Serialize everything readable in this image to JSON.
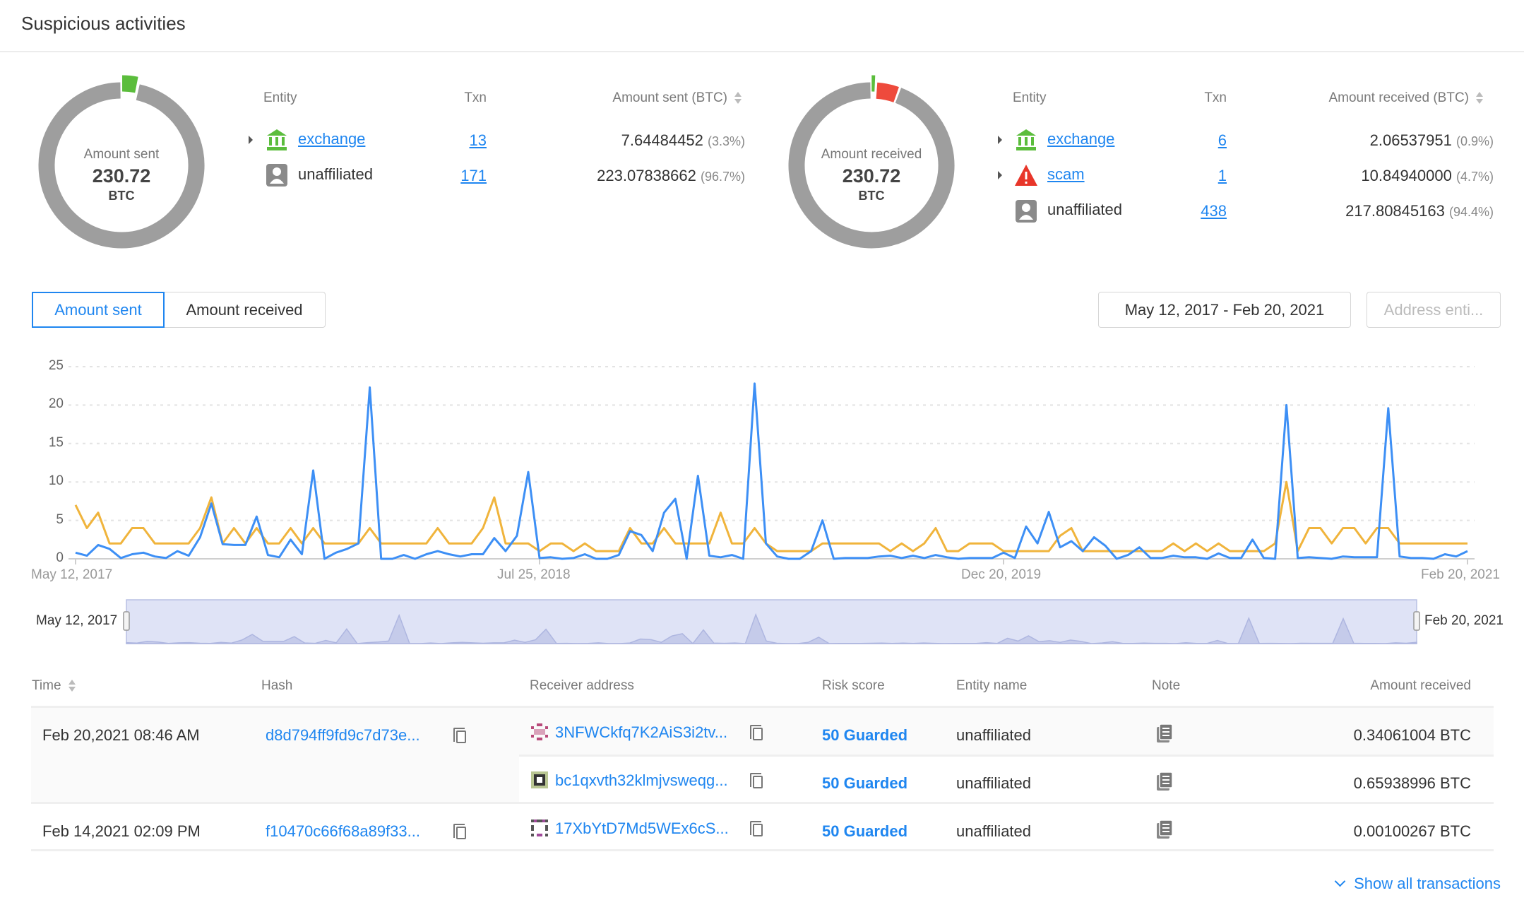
{
  "page": {
    "title": "Suspicious activities"
  },
  "colors": {
    "accent": "#1f86f0",
    "exchange": "#5bbd3c",
    "scam": "#ee4a3c",
    "unaffiliated": "#9e9e9e",
    "sent_line": "#3d8ff5",
    "received_line": "#f0b43c"
  },
  "sent_summary": {
    "donut": {
      "label": "Amount sent",
      "total": "230.72",
      "unit": "BTC",
      "segments_pct": [
        3.3,
        96.7
      ],
      "segment_colors": [
        "#5bbd3c",
        "#9e9e9e"
      ]
    },
    "headers": {
      "entity": "Entity",
      "txn": "Txn",
      "amount": "Amount sent (BTC)"
    },
    "rows": [
      {
        "icon": "bank-icon",
        "entity": "exchange",
        "txn": "13",
        "amount": "7.64484452",
        "pct": "(3.3%)",
        "expandable": true,
        "link": true
      },
      {
        "icon": "person-icon",
        "entity": "unaffiliated",
        "txn": "171",
        "amount": "223.07838662",
        "pct": "(96.7%)",
        "expandable": false,
        "link": false
      }
    ]
  },
  "received_summary": {
    "donut": {
      "label": "Amount received",
      "total": "230.72",
      "unit": "BTC",
      "segments_pct": [
        0.9,
        4.7,
        94.4
      ],
      "segment_colors": [
        "#5bbd3c",
        "#ee4a3c",
        "#9e9e9e"
      ]
    },
    "headers": {
      "entity": "Entity",
      "txn": "Txn",
      "amount": "Amount received (BTC)"
    },
    "rows": [
      {
        "icon": "bank-icon",
        "entity": "exchange",
        "txn": "6",
        "amount": "2.06537951",
        "pct": "(0.9%)"
      },
      {
        "icon": "warning-icon",
        "entity": "scam",
        "txn": "1",
        "amount": "10.84940000",
        "pct": "(4.7%)"
      },
      {
        "icon": "person-icon",
        "entity": "unaffiliated",
        "txn": "438",
        "amount": "217.80845163",
        "pct": "(94.4%)"
      }
    ]
  },
  "toolbar": {
    "tabs": [
      {
        "label": "Amount sent",
        "active": true
      },
      {
        "label": "Amount received",
        "active": false
      }
    ],
    "date_range": "May 12, 2017 - Feb 20, 2021",
    "address_filter_placeholder": "Address enti..."
  },
  "chart_data": {
    "type": "line",
    "title": "",
    "xlabel": "",
    "ylabel": "",
    "ylim": [
      0,
      25
    ],
    "yticks": [
      "0",
      "5",
      "10",
      "15",
      "20",
      "25"
    ],
    "xticks": [
      {
        "label": "May 12, 2017",
        "index": 0
      },
      {
        "label": "Jul 25, 2018",
        "index": 41
      },
      {
        "label": "Dec 20, 2019",
        "index": 82
      },
      {
        "label": "Feb 20, 2021",
        "index": 123
      }
    ],
    "grid": true,
    "series": [
      {
        "name": "Amount sent",
        "color": "#3d8ff5",
        "values": [
          0.8,
          0.4,
          1.8,
          1.3,
          0.1,
          0.6,
          0.8,
          0.3,
          0.1,
          1.0,
          0.4,
          2.8,
          7.2,
          1.9,
          1.8,
          1.8,
          5.5,
          0.5,
          0.2,
          2.5,
          0.6,
          11.5,
          0.0,
          0.8,
          1.3,
          2.0,
          22.3,
          0.0,
          0.0,
          0.5,
          0.0,
          0.6,
          1.0,
          0.6,
          0.3,
          0.6,
          0.6,
          2.7,
          1.0,
          3.0,
          11.3,
          0.1,
          0.2,
          0.0,
          0.1,
          0.6,
          0.0,
          0.0,
          0.5,
          3.6,
          3.1,
          1.0,
          6.0,
          7.8,
          0.0,
          10.8,
          0.4,
          0.2,
          0.5,
          0.0,
          22.8,
          2.0,
          0.3,
          0.0,
          0.0,
          1.0,
          5.0,
          0.0,
          0.1,
          0.1,
          0.1,
          0.3,
          0.4,
          0.1,
          0.4,
          0.1,
          0.5,
          0.2,
          0.0,
          0.1,
          0.1,
          0.1,
          0.8,
          0.1,
          4.2,
          2.0,
          6.1,
          1.5,
          2.3,
          1.0,
          2.8,
          1.7,
          0.0,
          0.5,
          1.5,
          0.1,
          0.1,
          0.4,
          0.2,
          0.2,
          0.0,
          0.7,
          0.1,
          0.1,
          2.5,
          0.1,
          0.0,
          20.0,
          0.1,
          0.2,
          0.1,
          0.0,
          0.3,
          0.2,
          0.2,
          0.2,
          19.6,
          0.3,
          0.1,
          0.1,
          0.0,
          0.6,
          0.3,
          1.0
        ]
      },
      {
        "name": "Amount received",
        "color": "#f0b43c",
        "values": [
          7,
          4,
          6,
          2,
          2,
          4,
          4,
          2,
          2,
          2,
          2,
          4,
          8,
          2,
          4,
          2,
          4,
          2,
          2,
          4,
          2,
          4,
          2,
          2,
          2,
          2,
          4,
          2,
          2,
          2,
          2,
          2,
          4,
          2,
          2,
          2,
          4,
          8,
          2,
          2,
          2,
          1,
          2,
          2,
          1,
          2,
          1,
          1,
          1,
          4,
          2,
          2,
          4,
          2,
          2,
          2,
          2,
          6,
          2,
          2,
          4,
          2,
          1,
          1,
          1,
          1,
          2,
          2,
          2,
          2,
          2,
          2,
          1,
          2,
          1,
          2,
          4,
          1,
          1,
          2,
          2,
          2,
          1,
          1,
          1,
          1,
          1,
          3,
          4,
          1,
          1,
          1,
          1,
          1,
          1,
          1,
          1,
          2,
          1,
          2,
          1,
          2,
          1,
          1,
          1,
          1,
          2,
          10,
          1,
          4,
          4,
          2,
          4,
          4,
          2,
          4,
          4,
          2,
          2,
          2,
          2,
          2,
          2,
          2
        ]
      }
    ],
    "navigator": {
      "start_label": "May 12, 2017",
      "end_label": "Feb 20, 2021"
    }
  },
  "transactions": {
    "headers": {
      "time": "Time",
      "hash": "Hash",
      "receiver": "Receiver address",
      "risk": "Risk score",
      "entity": "Entity name",
      "note": "Note",
      "amount": "Amount received"
    },
    "groups": [
      {
        "time": "Feb 20,2021 08:46 AM",
        "hash": "d8d794ff9fd9c7d73e...",
        "outputs": [
          {
            "address": "3NFWCkfq7K2AiS3i2tv...",
            "ident_color": "#b84a7a",
            "risk": "50 Guarded",
            "entity": "unaffiliated",
            "amount": "0.34061004 BTC"
          },
          {
            "address": "bc1qxvth32klmjvsweqg...",
            "ident_color": "#8aa04a",
            "risk": "50 Guarded",
            "entity": "unaffiliated",
            "amount": "0.65938996 BTC"
          }
        ]
      },
      {
        "time": "Feb 14,2021 02:09 PM",
        "hash": "f10470c66f68a89f33...",
        "outputs": [
          {
            "address": "17XbYtD7Md5WEx6cS...",
            "ident_color": "#7a4a8a",
            "risk": "50 Guarded",
            "entity": "unaffiliated",
            "amount": "0.00100267 BTC"
          }
        ]
      }
    ],
    "show_all": "Show all transactions"
  }
}
